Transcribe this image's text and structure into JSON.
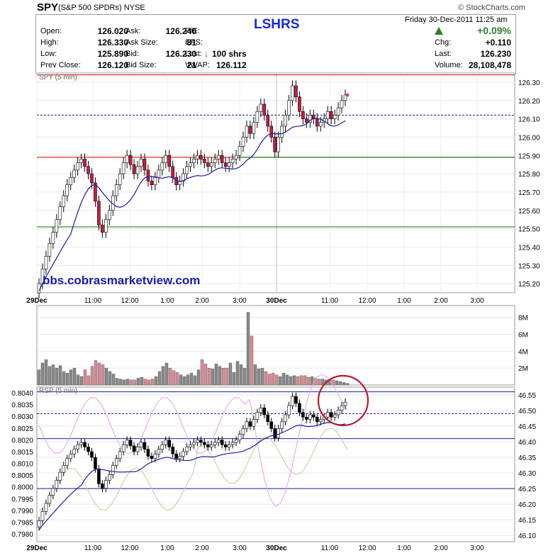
{
  "header": {
    "symbol": "SPY",
    "name": "(S&P 500 SPDRs)",
    "exchange": "NYSE",
    "brand": "© StockCharts.com",
    "overlay_title": "LSHRS",
    "watermark": "bbs.cobrasmarketview.com"
  },
  "quote": {
    "open_label": "Open:",
    "open": "126.020",
    "high_label": "High:",
    "high": "126.330",
    "low_label": "Low:",
    "low": "125.890",
    "prev_close_label": "Prev Close:",
    "prev_close": "126.120",
    "ask_label": "Ask:",
    "ask": "126.240",
    "ask_size_label": "Ask Size:",
    "ask_size": "81",
    "bid_label": "Bid:",
    "bid": "126.230",
    "bid_size_label": "Bid Size:",
    "bid_size": "21",
    "pe_label": "P/E:",
    "eps_label": "EPS:",
    "last_trade_label": "Last:",
    "last_trade": "100 shrs",
    "vwap_label": "VWAP:",
    "vwap": "126.112",
    "date": "Friday  30-Dec-2011  11:25 am",
    "pct_change": "+0.09%",
    "chg_label": "Chg:",
    "chg": "+0.110",
    "last_label": "Last:",
    "last": "126.230",
    "volume_label": "Volume:",
    "volume": "28,108,478"
  },
  "colors": {
    "up": "#ffffff",
    "down": "#cc1a44",
    "ma": "#1a1aaa",
    "red_line": "#cc0000",
    "green_line": "#007700",
    "up_arrow": "#2e7d32"
  },
  "chart_data": [
    {
      "type": "candlestick",
      "panel": "price",
      "title": "SPY (5 min)",
      "ylim": [
        125.15,
        126.35
      ],
      "y_ticks": [
        "126.30",
        "126.20",
        "126.10",
        "126.00",
        "125.90",
        "125.80",
        "125.70",
        "125.60",
        "125.50",
        "125.40",
        "125.30",
        "125.20"
      ],
      "x_ticks": [
        "29Dec",
        "11:00",
        "12:00",
        "1:00",
        "2:00",
        "3:00",
        "30Dec",
        "11:00",
        "12:00",
        "1:00",
        "2:00",
        "3:00"
      ],
      "horizontal_lines": [
        {
          "value": 126.34,
          "color": "red"
        },
        {
          "value": 126.12,
          "color": "blue",
          "style": "dashed"
        },
        {
          "value": 125.89,
          "color": "red"
        },
        {
          "value": 125.89,
          "color": "green"
        },
        {
          "value": 125.51,
          "color": "green"
        }
      ],
      "closes": [
        125.2,
        125.28,
        125.35,
        125.42,
        125.48,
        125.55,
        125.62,
        125.68,
        125.74,
        125.78,
        125.82,
        125.86,
        125.88,
        125.84,
        125.8,
        125.75,
        125.65,
        125.52,
        125.48,
        125.55,
        125.6,
        125.68,
        125.74,
        125.8,
        125.86,
        125.9,
        125.85,
        125.8,
        125.84,
        125.88,
        125.82,
        125.76,
        125.74,
        125.78,
        125.82,
        125.86,
        125.9,
        125.84,
        125.78,
        125.74,
        125.76,
        125.8,
        125.84,
        125.86,
        125.88,
        125.9,
        125.88,
        125.86,
        125.84,
        125.86,
        125.88,
        125.9,
        125.86,
        125.84,
        125.86,
        125.88,
        125.9,
        125.95,
        126.0,
        126.06,
        126.02,
        126.08,
        126.14,
        126.18,
        126.12,
        126.06,
        126.0,
        125.92,
        126.0,
        126.06,
        126.12,
        126.2,
        126.28,
        126.22,
        126.14,
        126.1,
        126.08,
        126.12,
        126.1,
        126.06,
        126.08,
        126.1,
        126.14,
        126.1,
        126.12,
        126.16,
        126.2,
        126.23
      ],
      "last_price": 126.23
    },
    {
      "type": "bar",
      "panel": "volume",
      "y_ticks": [
        "8M",
        "6M",
        "4M",
        "2M"
      ],
      "values_m": [
        1.8,
        2.6,
        3.0,
        2.2,
        2.4,
        2.0,
        2.3,
        1.6,
        1.4,
        1.8,
        2.0,
        1.2,
        1.0,
        1.8,
        1.1,
        2.2,
        2.9,
        2.6,
        2.4,
        2.0,
        1.6,
        1.3,
        0.8,
        0.7,
        0.6,
        0.7,
        0.6,
        0.6,
        0.8,
        0.9,
        0.7,
        0.6,
        0.7,
        1.0,
        1.6,
        2.2,
        2.6,
        2.0,
        1.7,
        1.5,
        1.2,
        1.0,
        1.2,
        1.4,
        1.1,
        1.8,
        3.0,
        2.5,
        2.0,
        1.9,
        2.5,
        2.2,
        2.0,
        2.0,
        2.6,
        1.5,
        2.8,
        2.4,
        2.0,
        8.6,
        5.8,
        2.4,
        1.9,
        2.0,
        1.6,
        1.3,
        1.4,
        1.2,
        1.0,
        1.4,
        1.2,
        1.0,
        1.1,
        1.0,
        1.1,
        1.1,
        0.9,
        1.0,
        0.8,
        0.7,
        0.7,
        0.6,
        0.7,
        0.6,
        0.5,
        0.4,
        0.3,
        0.2
      ]
    },
    {
      "type": "candlestick",
      "panel": "ratio",
      "title": "RSP (5 min)",
      "left_ticks": [
        "0.8040",
        "0.8035",
        "0.8030",
        "0.8025",
        "0.8020",
        "0.8015",
        "0.8010",
        "0.8005",
        "0.8000",
        "0.7995",
        "0.7990",
        "0.7985",
        "0.7980"
      ],
      "right_ticks": [
        "46.55",
        "46.50",
        "46.45",
        "46.40",
        "46.35",
        "46.30",
        "46.25",
        "46.20",
        "46.15",
        "46.10"
      ],
      "horizontal_lines": [
        {
          "value": 46.56,
          "color": "blue"
        },
        {
          "value": 46.49,
          "color": "blue",
          "style": "dashed"
        },
        {
          "value": 46.41,
          "color": "blue"
        },
        {
          "value": 46.25,
          "color": "blue"
        }
      ],
      "circled_region": "last bars near 46.50"
    }
  ]
}
